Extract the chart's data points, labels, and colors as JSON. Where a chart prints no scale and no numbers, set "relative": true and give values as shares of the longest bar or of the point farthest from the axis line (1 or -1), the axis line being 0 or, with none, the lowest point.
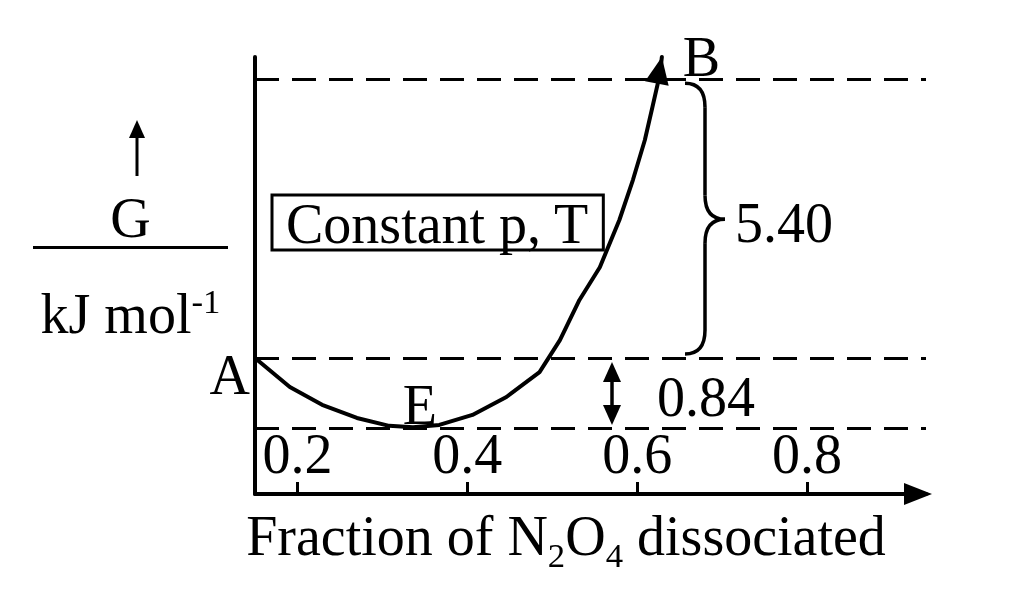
{
  "chart_data": {
    "type": "line",
    "xlabel": "Fraction of N$_{2}$O$_{4}$ dissociated",
    "ylabel": "G kJ mol$^{-1}$",
    "relative": true,
    "x": [
      0.15,
      0.191,
      0.229,
      0.27,
      0.308,
      0.336,
      0.367,
      0.406,
      0.446,
      0.485,
      0.509,
      0.532,
      0.556,
      0.579,
      0.595,
      0.609,
      0.618,
      0.627,
      0.629
    ],
    "series": [
      {
        "color": "#000000",
        "values": [
          0.311,
          0.245,
          0.204,
          0.174,
          0.156,
          0.153,
          0.158,
          0.181,
          0.222,
          0.279,
          0.352,
          0.444,
          0.519,
          0.627,
          0.719,
          0.81,
          0.886,
          0.963,
          1
        ]
      }
    ],
    "xlim": [
      0.15,
      0.94
    ],
    "xticks": [
      0.2,
      0.4,
      0.6,
      0.8
    ],
    "tick_labels": "x",
    "marker": "none",
    "line_style": "solid",
    "ref_lines": [
      {
        "axis": "y",
        "value": 0.947,
        "color": "#000000",
        "line_style": "dashed"
      },
      {
        "axis": "y",
        "value": 0.311,
        "color": "#000000",
        "line_style": "dashed"
      },
      {
        "axis": "y",
        "value": 0.153,
        "color": "#000000",
        "line_style": "dashed"
      }
    ],
    "annotations": [
      "Constant p, T",
      "5.40",
      "0.84",
      {
        "text": "A",
        "x": 0.15,
        "y": 0.311
      },
      {
        "text": "B",
        "x": 0.629,
        "y": 1
      },
      {
        "text": "E",
        "x": 0.336,
        "y": 0.153
      }
    ]
  }
}
